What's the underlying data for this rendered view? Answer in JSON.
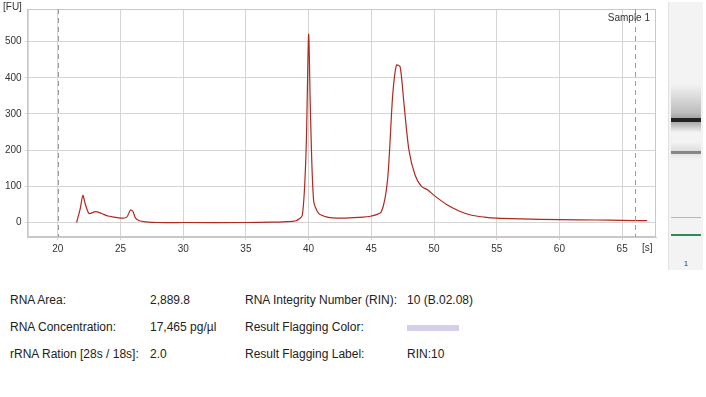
{
  "chart_data": {
    "type": "line",
    "title": "Sample 1",
    "x_label": "[s]",
    "y_label": "[FU]",
    "series": [
      {
        "color": "#b0281e",
        "line_style": "solid",
        "x": [
          21.5,
          21.8,
          22.0,
          22.2,
          22.5,
          23.0,
          23.5,
          24.0,
          24.5,
          25.0,
          25.5,
          25.8,
          26.0,
          26.2,
          26.5,
          27.0,
          28.0,
          30.0,
          35.0,
          37.0,
          38.0,
          39.0,
          39.5,
          39.8,
          40.0,
          40.15,
          40.4,
          40.8,
          41.5,
          42.5,
          44.0,
          45.0,
          45.8,
          46.3,
          46.7,
          47.0,
          47.3,
          47.6,
          48.0,
          48.5,
          49.0,
          49.5,
          50.0,
          51.0,
          52.0,
          53.0,
          54.0,
          55.0,
          57.0,
          60.0,
          63.0,
          65.0,
          67.0
        ],
        "values": [
          0,
          40,
          75,
          50,
          25,
          30,
          25,
          18,
          15,
          12,
          15,
          35,
          30,
          12,
          5,
          2,
          0,
          0,
          0,
          1,
          2,
          5,
          20,
          200,
          520,
          300,
          60,
          25,
          15,
          12,
          14,
          18,
          30,
          120,
          350,
          435,
          430,
          330,
          200,
          130,
          100,
          90,
          75,
          50,
          32,
          20,
          15,
          12,
          10,
          8,
          7,
          6,
          5
        ]
      }
    ],
    "vlines": [
      20.0,
      66.0
    ],
    "xlim": [
      17.6,
      67.7
    ],
    "xticks": [
      20,
      25,
      30,
      35,
      40,
      45,
      50,
      55,
      60,
      65
    ],
    "ylim": [
      -40,
      590
    ],
    "yticks": [
      0,
      100,
      200,
      300,
      400,
      500
    ],
    "grid": true
  },
  "gel": {
    "lane_label": "1"
  },
  "results": {
    "rows": [
      [
        {
          "label": "RNA Area:",
          "value": "2,889.8"
        },
        {
          "label": "RNA Integrity Number (RIN):",
          "value": "10  (B.02.08)"
        }
      ],
      [
        {
          "label": "RNA Concentration:",
          "value": "17,465  pg/µl"
        },
        {
          "label": "Result Flagging Color:",
          "swatch": "#d2d0ec"
        }
      ],
      [
        {
          "label": "rRNA Ration [28s / 18s]:",
          "value": "2.0"
        },
        {
          "label": "Result Flagging Label:",
          "value": "RIN:10"
        }
      ]
    ]
  }
}
